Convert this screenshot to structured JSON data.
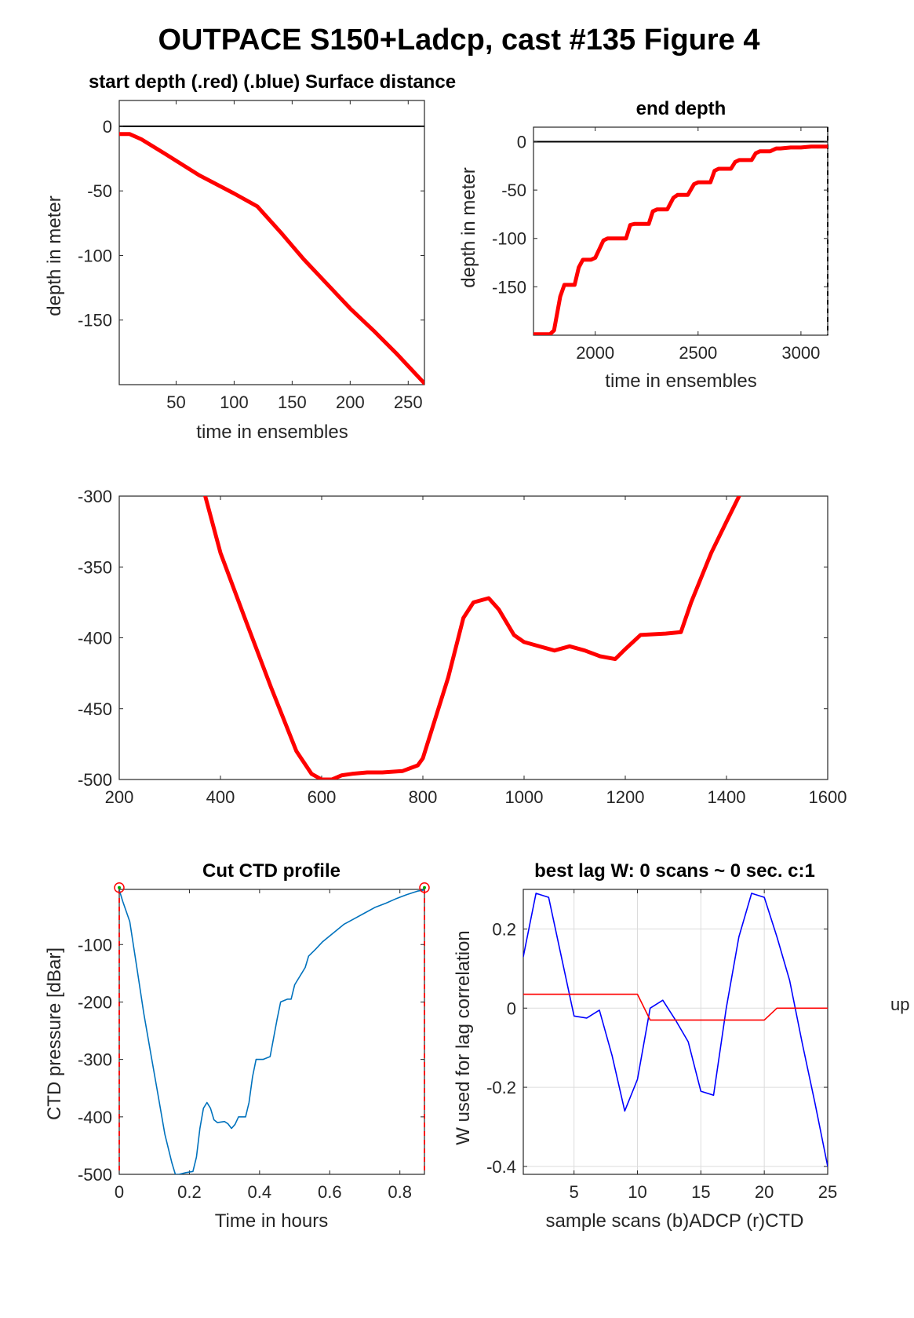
{
  "figure": {
    "title": "OUTPACE S150+Ladcp, cast #135   Figure 4",
    "side_label": "up"
  },
  "chart_data": [
    {
      "id": "start",
      "type": "line",
      "title": "start depth (.red) (.blue) Surface distance",
      "xlabel": "time in ensembles",
      "ylabel": "depth in meter",
      "xlim": [
        1,
        264
      ],
      "ylim": [
        -200,
        20
      ],
      "xticks": [
        50,
        100,
        150,
        200,
        250
      ],
      "yticks": [
        0,
        -50,
        -100,
        -150
      ],
      "hlines": [
        0
      ],
      "series": [
        {
          "color": "#ff0000",
          "x": [
            1,
            10,
            20,
            40,
            70,
            100,
            120,
            140,
            160,
            180,
            200,
            220,
            240,
            264
          ],
          "y": [
            -6,
            -6,
            -10,
            -21,
            -38,
            -52,
            -62,
            -82,
            -103,
            -122,
            -141,
            -158,
            -176,
            -199
          ]
        }
      ]
    },
    {
      "id": "end",
      "type": "line",
      "title": "end depth",
      "xlabel": "time in ensembles",
      "ylabel": "depth in meter",
      "xlim": [
        1700,
        3130
      ],
      "ylim": [
        -200,
        15
      ],
      "xticks": [
        2000,
        2500,
        3000
      ],
      "yticks": [
        0,
        -50,
        -100,
        -150
      ],
      "hlines": [
        0
      ],
      "vlines": [
        3130
      ],
      "series": [
        {
          "color": "#ff0000",
          "x": [
            1700,
            1780,
            1800,
            1830,
            1850,
            1900,
            1920,
            1940,
            1980,
            2000,
            2040,
            2060,
            2150,
            2170,
            2190,
            2260,
            2280,
            2300,
            2350,
            2380,
            2400,
            2450,
            2480,
            2500,
            2560,
            2580,
            2600,
            2660,
            2680,
            2700,
            2760,
            2780,
            2800,
            2850,
            2880,
            2900,
            2950,
            3000,
            3050,
            3130
          ],
          "y": [
            -199,
            -199,
            -195,
            -160,
            -148,
            -148,
            -130,
            -122,
            -122,
            -120,
            -102,
            -100,
            -100,
            -86,
            -85,
            -85,
            -72,
            -70,
            -70,
            -58,
            -55,
            -55,
            -44,
            -42,
            -42,
            -30,
            -28,
            -28,
            -21,
            -19,
            -19,
            -12,
            -10,
            -10,
            -7,
            -7,
            -6,
            -6,
            -5,
            -5
          ]
        }
      ]
    },
    {
      "id": "middle",
      "type": "line",
      "title": "",
      "xlabel": "",
      "ylabel": "",
      "xlim": [
        200,
        1600
      ],
      "ylim": [
        -500,
        -300
      ],
      "xticks": [
        200,
        400,
        600,
        800,
        1000,
        1200,
        1400,
        1600
      ],
      "yticks": [
        -300,
        -350,
        -400,
        -450,
        -500
      ],
      "series": [
        {
          "color": "#ff0000",
          "x": [
            370,
            400,
            450,
            500,
            550,
            580,
            600,
            620,
            640,
            660,
            690,
            720,
            760,
            790,
            800,
            850,
            880,
            900,
            930,
            950,
            980,
            1000,
            1020,
            1060,
            1090,
            1120,
            1150,
            1180,
            1200,
            1230,
            1280,
            1310,
            1330,
            1370,
            1400,
            1425
          ],
          "y": [
            -300,
            -340,
            -388,
            -435,
            -480,
            -496,
            -500,
            -500,
            -497,
            -496,
            -495,
            -495,
            -494,
            -490,
            -485,
            -428,
            -386,
            -375,
            -372,
            -380,
            -398,
            -403,
            -405,
            -409,
            -406,
            -409,
            -413,
            -415,
            -408,
            -398,
            -397,
            -396,
            -375,
            -340,
            -318,
            -300
          ]
        }
      ]
    },
    {
      "id": "ctd",
      "type": "line",
      "title": "Cut CTD profile",
      "xlabel": "Time in hours",
      "ylabel": "CTD pressure [dBar]",
      "xlim": [
        0,
        0.87
      ],
      "ylim": [
        -500,
        -4
      ],
      "xticks": [
        0,
        0.2,
        0.4,
        0.6,
        0.8
      ],
      "xticklabels": [
        "0",
        "0.2",
        "0.4",
        "0.6",
        "0.8"
      ],
      "yticks": [
        -100,
        -200,
        -300,
        -400,
        -500
      ],
      "vlines": [
        0,
        0.87
      ],
      "markers": [
        {
          "x": 0,
          "y": -5
        },
        {
          "x": 0.87,
          "y": -5
        }
      ],
      "series": [
        {
          "color": "#0072bd",
          "x": [
            0,
            0.01,
            0.03,
            0.05,
            0.07,
            0.09,
            0.11,
            0.13,
            0.15,
            0.16,
            0.17,
            0.19,
            0.21,
            0.22,
            0.23,
            0.24,
            0.25,
            0.26,
            0.27,
            0.28,
            0.3,
            0.31,
            0.32,
            0.33,
            0.34,
            0.36,
            0.37,
            0.38,
            0.39,
            0.41,
            0.43,
            0.45,
            0.46,
            0.48,
            0.49,
            0.5,
            0.52,
            0.53,
            0.54,
            0.56,
            0.58,
            0.6,
            0.62,
            0.64,
            0.67,
            0.7,
            0.73,
            0.76,
            0.79,
            0.82,
            0.85,
            0.87
          ],
          "y": [
            -5,
            -25,
            -60,
            -140,
            -220,
            -290,
            -360,
            -430,
            -480,
            -500,
            -500,
            -497,
            -495,
            -470,
            -420,
            -385,
            -375,
            -385,
            -405,
            -410,
            -408,
            -412,
            -420,
            -413,
            -400,
            -400,
            -375,
            -330,
            -300,
            -300,
            -295,
            -230,
            -200,
            -195,
            -195,
            -170,
            -150,
            -140,
            -120,
            -108,
            -95,
            -85,
            -75,
            -65,
            -55,
            -45,
            -35,
            -28,
            -20,
            -13,
            -7,
            -5
          ]
        }
      ]
    },
    {
      "id": "lag",
      "type": "line",
      "title": "best lag W: 0 scans ~ 0 sec.  c:1",
      "xlabel": "sample scans (b)ADCP (r)CTD",
      "ylabel": "W used for lag correlation",
      "xlim": [
        1,
        25
      ],
      "ylim": [
        -0.42,
        0.3
      ],
      "xticks": [
        5,
        10,
        15,
        20,
        25
      ],
      "yticks": [
        0.2,
        0,
        -0.2,
        -0.4
      ],
      "grid": true,
      "series": [
        {
          "color": "#0000ff",
          "x": [
            1,
            2,
            3,
            4,
            5,
            6,
            7,
            8,
            9,
            10,
            11,
            12,
            13,
            14,
            15,
            16,
            17,
            18,
            19,
            20,
            21,
            22,
            23,
            24,
            25
          ],
          "y": [
            0.13,
            0.29,
            0.28,
            0.13,
            -0.02,
            -0.025,
            -0.005,
            -0.12,
            -0.26,
            -0.18,
            0.0,
            0.02,
            -0.03,
            -0.085,
            -0.21,
            -0.22,
            0.0,
            0.18,
            0.29,
            0.28,
            0.18,
            0.07,
            -0.09,
            -0.24,
            -0.4
          ]
        },
        {
          "color": "#ff0000",
          "x": [
            1,
            5,
            10,
            11,
            16,
            20,
            21,
            25
          ],
          "y": [
            0.035,
            0.035,
            0.035,
            -0.03,
            -0.03,
            -0.03,
            0.0,
            0.0
          ]
        }
      ]
    }
  ]
}
